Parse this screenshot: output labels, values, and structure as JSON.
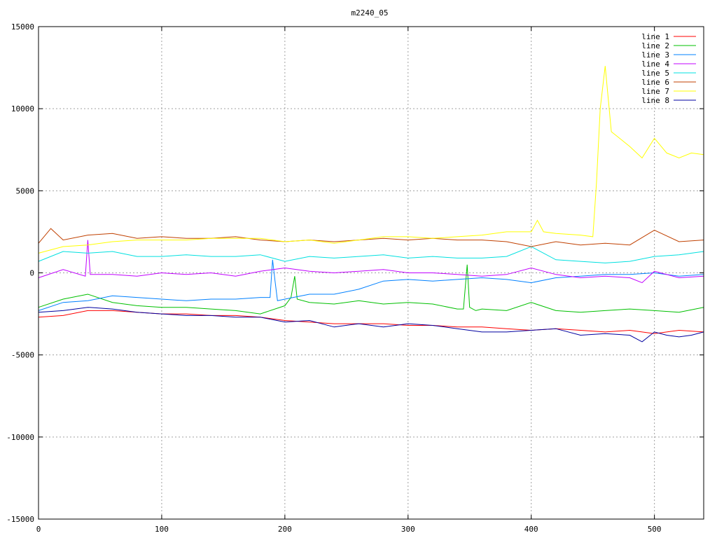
{
  "chart_data": {
    "type": "line",
    "title": "m2240_05",
    "xlabel": "",
    "ylabel": "",
    "xlim": [
      0,
      540
    ],
    "ylim": [
      -15000,
      15000
    ],
    "x_ticks": [
      0,
      100,
      200,
      300,
      400,
      500
    ],
    "y_ticks": [
      -15000,
      -10000,
      -5000,
      0,
      5000,
      10000,
      15000
    ],
    "grid": true,
    "legend_position": "top-right",
    "series": [
      {
        "name": "line 1",
        "color": "#ff0000",
        "x": [
          0,
          20,
          40,
          60,
          80,
          100,
          120,
          140,
          160,
          180,
          200,
          220,
          240,
          260,
          280,
          300,
          320,
          340,
          360,
          380,
          400,
          420,
          440,
          460,
          480,
          500,
          520,
          540
        ],
        "y": [
          -2700,
          -2600,
          -2300,
          -2300,
          -2400,
          -2500,
          -2500,
          -2600,
          -2600,
          -2700,
          -2900,
          -3000,
          -3100,
          -3100,
          -3100,
          -3200,
          -3200,
          -3300,
          -3300,
          -3400,
          -3500,
          -3400,
          -3500,
          -3600,
          -3500,
          -3700,
          -3500,
          -3600
        ]
      },
      {
        "name": "line 2",
        "color": "#00c000",
        "x": [
          0,
          20,
          40,
          60,
          80,
          100,
          120,
          140,
          160,
          180,
          200,
          205,
          208,
          210,
          220,
          240,
          260,
          280,
          300,
          320,
          340,
          345,
          348,
          350,
          355,
          360,
          380,
          400,
          420,
          440,
          460,
          480,
          500,
          520,
          540
        ],
        "y": [
          -2100,
          -1600,
          -1300,
          -1800,
          -2000,
          -2100,
          -2100,
          -2200,
          -2300,
          -2500,
          -2000,
          -1500,
          -200,
          -1600,
          -1800,
          -1900,
          -1700,
          -1900,
          -1800,
          -1900,
          -2200,
          -2200,
          500,
          -2100,
          -2300,
          -2200,
          -2300,
          -1800,
          -2300,
          -2400,
          -2300,
          -2200,
          -2300,
          -2400,
          -2100
        ]
      },
      {
        "name": "line 3",
        "color": "#0080ff",
        "x": [
          0,
          20,
          40,
          60,
          80,
          100,
          120,
          140,
          160,
          180,
          188,
          190,
          192,
          194,
          200,
          220,
          240,
          260,
          280,
          300,
          320,
          340,
          360,
          380,
          400,
          420,
          440,
          460,
          480,
          500,
          520,
          540
        ],
        "y": [
          -2300,
          -1800,
          -1700,
          -1400,
          -1500,
          -1600,
          -1700,
          -1600,
          -1600,
          -1500,
          -1500,
          800,
          -500,
          -1700,
          -1600,
          -1300,
          -1300,
          -1000,
          -500,
          -400,
          -500,
          -400,
          -300,
          -400,
          -600,
          -300,
          -200,
          -100,
          -100,
          0,
          -200,
          -100
        ]
      },
      {
        "name": "line 4",
        "color": "#c000ff",
        "x": [
          0,
          20,
          38,
          40,
          42,
          60,
          80,
          100,
          120,
          140,
          160,
          180,
          200,
          220,
          240,
          260,
          280,
          300,
          320,
          340,
          360,
          380,
          400,
          420,
          440,
          460,
          480,
          490,
          500,
          520,
          540
        ],
        "y": [
          -300,
          200,
          -200,
          2000,
          -100,
          -100,
          -200,
          0,
          -100,
          0,
          -200,
          100,
          300,
          100,
          0,
          100,
          200,
          0,
          0,
          -100,
          -200,
          -100,
          300,
          -100,
          -300,
          -200,
          -300,
          -600,
          100,
          -300,
          -200
        ]
      },
      {
        "name": "line 5",
        "color": "#00e0e0",
        "x": [
          0,
          20,
          40,
          60,
          80,
          100,
          120,
          140,
          160,
          180,
          200,
          220,
          240,
          260,
          280,
          300,
          320,
          340,
          360,
          380,
          400,
          420,
          440,
          460,
          480,
          500,
          520,
          540
        ],
        "y": [
          700,
          1300,
          1200,
          1300,
          1000,
          1000,
          1100,
          1000,
          1000,
          1100,
          700,
          1000,
          900,
          1000,
          1100,
          900,
          1000,
          900,
          900,
          1000,
          1600,
          800,
          700,
          600,
          700,
          1000,
          1100,
          1300
        ]
      },
      {
        "name": "line 6",
        "color": "#c04000",
        "x": [
          0,
          10,
          20,
          40,
          60,
          80,
          100,
          120,
          140,
          160,
          180,
          200,
          220,
          240,
          260,
          280,
          300,
          320,
          340,
          360,
          380,
          400,
          420,
          440,
          460,
          480,
          500,
          520,
          540
        ],
        "y": [
          1800,
          2700,
          2000,
          2300,
          2400,
          2100,
          2200,
          2100,
          2100,
          2200,
          2000,
          1900,
          2000,
          1900,
          2000,
          2100,
          2000,
          2100,
          2000,
          2000,
          1900,
          1600,
          1900,
          1700,
          1800,
          1700,
          2600,
          1900,
          2000
        ]
      },
      {
        "name": "line 7",
        "color": "#ffff00",
        "x": [
          0,
          20,
          40,
          60,
          80,
          100,
          120,
          140,
          160,
          180,
          200,
          220,
          240,
          260,
          280,
          300,
          320,
          340,
          360,
          380,
          400,
          405,
          410,
          420,
          440,
          450,
          453,
          456,
          460,
          465,
          470,
          480,
          490,
          500,
          510,
          520,
          530,
          540
        ],
        "y": [
          1200,
          1600,
          1700,
          1900,
          2000,
          2000,
          2000,
          2100,
          2100,
          2100,
          1900,
          2000,
          1800,
          2000,
          2200,
          2200,
          2100,
          2200,
          2300,
          2500,
          2500,
          3200,
          2500,
          2400,
          2300,
          2200,
          5500,
          10000,
          12600,
          8600,
          8300,
          7700,
          7000,
          8200,
          7300,
          7000,
          7300,
          7200
        ]
      },
      {
        "name": "line 8",
        "color": "#0000a0",
        "x": [
          0,
          20,
          40,
          60,
          80,
          100,
          120,
          140,
          160,
          180,
          200,
          220,
          240,
          260,
          280,
          300,
          320,
          340,
          360,
          380,
          400,
          420,
          440,
          460,
          480,
          490,
          500,
          510,
          520,
          530,
          540
        ],
        "y": [
          -2400,
          -2300,
          -2100,
          -2200,
          -2400,
          -2500,
          -2600,
          -2600,
          -2700,
          -2700,
          -3000,
          -2900,
          -3300,
          -3100,
          -3300,
          -3100,
          -3200,
          -3400,
          -3600,
          -3600,
          -3500,
          -3400,
          -3800,
          -3700,
          -3800,
          -4200,
          -3600,
          -3800,
          -3900,
          -3800,
          -3600
        ]
      }
    ]
  }
}
